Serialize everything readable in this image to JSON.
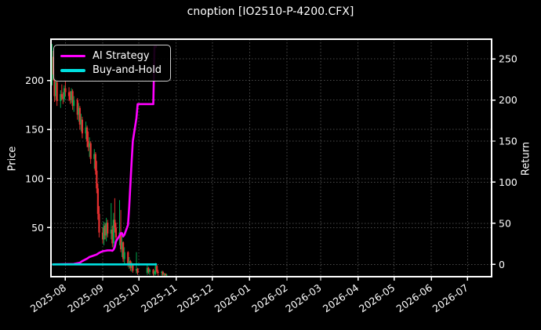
{
  "window": {
    "title": "cnoption [IO2510-P-4200.CFX]"
  },
  "chart_data": {
    "type": "mixed",
    "title": "cnoption [IO2510-P-4200.CFX]",
    "background": "#000000",
    "text_color": "#ffffff",
    "grid": {
      "on": true,
      "style": "dotted",
      "color": "#4a4a4a"
    },
    "spine_color": "#ffffff",
    "legend": {
      "position": "upper-left",
      "entries": [
        {
          "label": "AI Strategy",
          "color": "#ff00ff"
        },
        {
          "label": "Buy-and-Hold",
          "color": "#00e0e0"
        }
      ]
    },
    "x_axis": {
      "type": "date",
      "range": [
        "2025-07-20",
        "2026-07-21"
      ],
      "tick_labels": [
        "2025-08",
        "2025-09",
        "2025-10",
        "2025-11",
        "2025-12",
        "2026-01",
        "2026-02",
        "2026-03",
        "2026-04",
        "2026-05",
        "2026-06",
        "2026-07"
      ]
    },
    "left_axis": {
      "label": "Price",
      "ticks": [
        50,
        100,
        150,
        200
      ],
      "range": [
        0,
        242
      ]
    },
    "right_axis": {
      "label": "Return",
      "ticks": [
        0,
        50,
        100,
        150,
        200,
        250
      ],
      "range": [
        -15,
        274
      ]
    },
    "series": [
      {
        "name": "Price",
        "type": "candlestick",
        "axis": "left",
        "up_color": "#00a84c",
        "down_color": "#e63030",
        "data": [
          [
            "2025-07-21",
            200,
            237,
            195,
            224
          ],
          [
            "2025-07-22",
            224,
            230,
            200,
            206
          ],
          [
            "2025-07-23",
            206,
            212,
            178,
            184
          ],
          [
            "2025-07-24",
            184,
            203,
            180,
            198
          ],
          [
            "2025-07-25",
            198,
            201,
            174,
            179
          ],
          [
            "2025-07-28",
            179,
            190,
            172,
            186
          ],
          [
            "2025-07-29",
            186,
            196,
            180,
            183
          ],
          [
            "2025-07-30",
            183,
            188,
            176,
            181
          ],
          [
            "2025-07-31",
            181,
            195,
            178,
            192
          ],
          [
            "2025-08-01",
            192,
            200,
            184,
            188
          ],
          [
            "2025-08-04",
            188,
            193,
            179,
            184
          ],
          [
            "2025-08-05",
            184,
            189,
            176,
            180
          ],
          [
            "2025-08-06",
            180,
            192,
            177,
            189
          ],
          [
            "2025-08-07",
            189,
            191,
            170,
            174
          ],
          [
            "2025-08-08",
            174,
            184,
            168,
            180
          ],
          [
            "2025-08-11",
            180,
            182,
            160,
            165
          ],
          [
            "2025-08-12",
            165,
            177,
            158,
            172
          ],
          [
            "2025-08-13",
            172,
            174,
            150,
            155
          ],
          [
            "2025-08-14",
            155,
            166,
            148,
            160
          ],
          [
            "2025-08-15",
            160,
            163,
            141,
            146
          ],
          [
            "2025-08-18",
            146,
            158,
            140,
            152
          ],
          [
            "2025-08-19",
            152,
            154,
            132,
            138
          ],
          [
            "2025-08-20",
            138,
            148,
            128,
            132
          ],
          [
            "2025-08-21",
            132,
            142,
            122,
            136
          ],
          [
            "2025-08-22",
            136,
            138,
            115,
            120
          ],
          [
            "2025-08-25",
            120,
            130,
            110,
            125
          ],
          [
            "2025-08-26",
            125,
            127,
            104,
            108
          ],
          [
            "2025-08-27",
            108,
            118,
            85,
            90
          ],
          [
            "2025-08-28",
            90,
            95,
            58,
            64
          ],
          [
            "2025-08-29",
            64,
            72,
            40,
            45
          ],
          [
            "2025-09-01",
            45,
            50,
            34,
            38
          ],
          [
            "2025-09-02",
            38,
            56,
            32,
            52
          ],
          [
            "2025-09-03",
            52,
            54,
            38,
            42
          ],
          [
            "2025-09-04",
            42,
            60,
            36,
            55
          ],
          [
            "2025-09-05",
            55,
            58,
            40,
            44
          ],
          [
            "2025-09-08",
            44,
            75,
            38,
            48
          ],
          [
            "2025-09-09",
            48,
            52,
            30,
            34
          ],
          [
            "2025-09-10",
            34,
            65,
            28,
            58
          ],
          [
            "2025-09-11",
            58,
            80,
            45,
            50
          ],
          [
            "2025-09-12",
            50,
            55,
            34,
            40
          ],
          [
            "2025-09-15",
            40,
            78,
            32,
            45
          ],
          [
            "2025-09-16",
            45,
            68,
            25,
            28
          ],
          [
            "2025-09-17",
            28,
            42,
            20,
            35
          ],
          [
            "2025-09-18",
            35,
            36,
            15,
            18
          ],
          [
            "2025-09-19",
            18,
            30,
            12,
            25
          ],
          [
            "2025-09-22",
            25,
            26,
            10,
            13
          ],
          [
            "2025-09-23",
            13,
            20,
            8,
            16
          ],
          [
            "2025-09-24",
            16,
            17,
            6,
            9
          ],
          [
            "2025-09-25",
            9,
            15,
            5,
            12
          ],
          [
            "2025-09-26",
            12,
            13,
            4,
            6
          ],
          [
            "2025-09-29",
            6,
            25,
            3,
            8
          ],
          [
            "2025-09-30",
            8,
            9,
            2,
            4
          ],
          [
            "2025-10-08",
            4,
            12,
            2,
            9
          ],
          [
            "2025-10-09",
            9,
            10,
            3,
            5
          ],
          [
            "2025-10-10",
            5,
            8,
            2,
            7
          ],
          [
            "2025-10-13",
            7,
            8,
            1,
            3
          ],
          [
            "2025-10-14",
            3,
            6,
            1,
            5
          ],
          [
            "2025-10-15",
            5,
            14,
            2,
            11
          ],
          [
            "2025-10-16",
            11,
            12,
            3,
            5
          ],
          [
            "2025-10-17",
            5,
            7,
            1,
            4
          ],
          [
            "2025-10-20",
            4,
            6,
            1,
            5
          ],
          [
            "2025-10-21",
            5,
            6,
            0.5,
            2
          ],
          [
            "2025-10-22",
            2,
            4,
            0.5,
            3
          ],
          [
            "2025-10-23",
            3,
            3.5,
            0.5,
            1.5
          ],
          [
            "2025-10-24",
            1.5,
            3,
            0.5,
            2
          ]
        ]
      },
      {
        "name": "AI Strategy",
        "type": "line",
        "axis": "right",
        "color": "#ff00ff",
        "data": [
          [
            "2025-07-21",
            0
          ],
          [
            "2025-08-08",
            0.5
          ],
          [
            "2025-08-13",
            2
          ],
          [
            "2025-08-15",
            4
          ],
          [
            "2025-08-19",
            7
          ],
          [
            "2025-08-21",
            9
          ],
          [
            "2025-08-25",
            11
          ],
          [
            "2025-08-27",
            12
          ],
          [
            "2025-08-29",
            14
          ],
          [
            "2025-09-01",
            16
          ],
          [
            "2025-09-03",
            16.5
          ],
          [
            "2025-09-05",
            17
          ],
          [
            "2025-09-08",
            17
          ],
          [
            "2025-09-09",
            16.5
          ],
          [
            "2025-09-10",
            18
          ],
          [
            "2025-09-11",
            21
          ],
          [
            "2025-09-12",
            28
          ],
          [
            "2025-09-15",
            35
          ],
          [
            "2025-09-16",
            38
          ],
          [
            "2025-09-17",
            38
          ],
          [
            "2025-09-18",
            34
          ],
          [
            "2025-09-19",
            36
          ],
          [
            "2025-09-22",
            48
          ],
          [
            "2025-09-23",
            70
          ],
          [
            "2025-09-24",
            98
          ],
          [
            "2025-09-25",
            125
          ],
          [
            "2025-09-26",
            150
          ],
          [
            "2025-09-29",
            178
          ],
          [
            "2025-09-30",
            195
          ],
          [
            "2025-10-13",
            195
          ],
          [
            "2025-10-14",
            265
          ],
          [
            "2025-10-16",
            265
          ]
        ]
      },
      {
        "name": "Buy-and-Hold",
        "type": "line",
        "axis": "right",
        "color": "#00e0e0",
        "data": [
          [
            "2025-07-21",
            0
          ],
          [
            "2025-10-16",
            0
          ]
        ]
      }
    ]
  }
}
